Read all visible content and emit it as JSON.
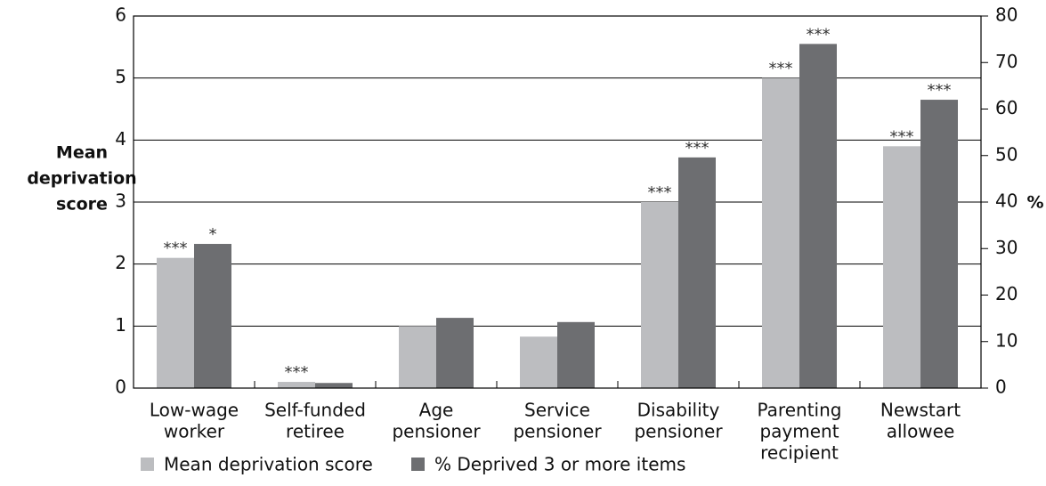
{
  "chart_data": {
    "type": "bar",
    "categories": [
      [
        "Low-wage",
        "worker"
      ],
      [
        "Self-funded",
        "retiree"
      ],
      [
        "Age",
        "pensioner"
      ],
      [
        "Service",
        "pensioner"
      ],
      [
        "Disability",
        "pensioner"
      ],
      [
        "Parenting",
        "payment",
        "recipient"
      ],
      [
        "Newstart",
        "allowee"
      ]
    ],
    "series": [
      {
        "name": "Mean deprivation score",
        "color": "#bcbdc0",
        "values": [
          2.1,
          0.1,
          1.0,
          0.83,
          3.0,
          5.0,
          3.9
        ],
        "annotations": [
          "***",
          "***",
          null,
          null,
          "***",
          "***",
          "***"
        ]
      },
      {
        "name": "% Deprived 3 or more items",
        "color": "#6d6e71",
        "axis": "y2",
        "values": [
          31,
          1.1,
          15.1,
          14.2,
          49.6,
          74,
          62
        ],
        "annotations": [
          "*",
          null,
          null,
          null,
          "***",
          "***",
          "***"
        ]
      }
    ],
    "y_label": [
      "Mean",
      "deprivation",
      "score"
    ],
    "y2_label": "%",
    "ylim": [
      0,
      6
    ],
    "yticks": [
      0,
      1,
      2,
      3,
      4,
      5,
      6
    ],
    "y2lim": [
      0,
      80
    ],
    "y2ticks": [
      0,
      10,
      20,
      30,
      40,
      50,
      60,
      70,
      80
    ],
    "grid": true,
    "legend": "bottom"
  }
}
